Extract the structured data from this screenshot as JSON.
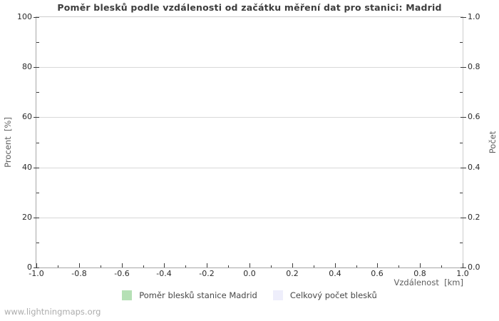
{
  "page": {
    "watermark": "www.lightningmaps.org",
    "background": "#ffffff"
  },
  "chart_data": {
    "type": "bar",
    "title": "Poměr blesků podle vzdálenosti od začátku měření dat pro stanici: Madrid",
    "xlabel": "Vzdálenost  [km]",
    "ylabel_left": "Procent  [%]",
    "ylabel_right": "Počet",
    "xlim": [
      -1.0,
      1.0
    ],
    "ylim_left": [
      0,
      100
    ],
    "ylim_right": [
      0.0,
      1.0
    ],
    "x_tick_labels": [
      "-1.0",
      "-0.8",
      "-0.6",
      "-0.4",
      "-0.2",
      "0.0",
      "0.2",
      "0.4",
      "0.6",
      "0.8",
      "1.0"
    ],
    "y_tick_labels_left": [
      "0",
      "20",
      "40",
      "60",
      "80",
      "100"
    ],
    "y_tick_labels_right": [
      "0.0",
      "0.2",
      "0.4",
      "0.6",
      "0.8",
      "1.0"
    ],
    "minor_ticks_between_majors": 1,
    "grid": "horizontal-only",
    "grid_color": "#d8d8d8",
    "tick_color": "#3a3a3a",
    "legend_position": "bottom-center",
    "plot_is_empty": true,
    "series": [
      {
        "name": "Poměr blesků stanice Madrid",
        "color": "#b5e0b5",
        "values": []
      },
      {
        "name": "Celkový počet blesků",
        "color": "#eeeefb",
        "values": []
      }
    ]
  }
}
